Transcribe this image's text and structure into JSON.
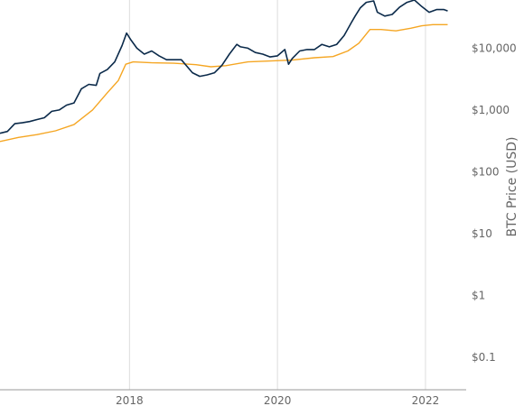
{
  "chart_data": {
    "type": "line",
    "title": "",
    "xlabel": "",
    "ylabel": "BTC Price (USD)",
    "y_scale": "log",
    "y_axis_side": "right",
    "ylim": [
      0.03,
      60000
    ],
    "xlim": [
      2016.25,
      2022.55
    ],
    "x_ticks": [
      {
        "value": 2018,
        "label": "2018"
      },
      {
        "value": 2020,
        "label": "2020"
      },
      {
        "value": 2022,
        "label": "2022"
      }
    ],
    "y_ticks": [
      {
        "value": 0.1,
        "label": "$0.1"
      },
      {
        "value": 1,
        "label": "$1"
      },
      {
        "value": 10,
        "label": "$10"
      },
      {
        "value": 100,
        "label": "$100"
      },
      {
        "value": 1000,
        "label": "$1,000"
      },
      {
        "value": 10000,
        "label": "$10,000"
      }
    ],
    "grid": {
      "vertical": true,
      "horizontal": false
    },
    "colors": {
      "price": "#0b2a4a",
      "average": "#f5a623",
      "grid": "#dddddd",
      "text": "#666666"
    },
    "series": [
      {
        "key": "price",
        "x": [
          2016.25,
          2016.35,
          2016.45,
          2016.55,
          2016.65,
          2016.75,
          2016.85,
          2016.95,
          2017.05,
          2017.15,
          2017.25,
          2017.35,
          2017.45,
          2017.55,
          2017.6,
          2017.7,
          2017.8,
          2017.9,
          2017.96,
          2018.02,
          2018.1,
          2018.2,
          2018.3,
          2018.4,
          2018.5,
          2018.6,
          2018.7,
          2018.85,
          2018.95,
          2019.05,
          2019.15,
          2019.25,
          2019.35,
          2019.45,
          2019.5,
          2019.6,
          2019.7,
          2019.8,
          2019.9,
          2020.0,
          2020.1,
          2020.15,
          2020.2,
          2020.3,
          2020.4,
          2020.5,
          2020.6,
          2020.7,
          2020.8,
          2020.9,
          2021.0,
          2021.05,
          2021.12,
          2021.2,
          2021.3,
          2021.35,
          2021.45,
          2021.55,
          2021.65,
          2021.75,
          2021.85,
          2021.95,
          2022.05,
          2022.15,
          2022.25,
          2022.3
        ],
        "y": [
          420,
          450,
          600,
          620,
          650,
          700,
          750,
          950,
          1000,
          1200,
          1300,
          2200,
          2600,
          2500,
          3900,
          4500,
          6000,
          11000,
          17500,
          13500,
          10000,
          8000,
          9000,
          7500,
          6500,
          6500,
          6500,
          4000,
          3500,
          3700,
          4000,
          5300,
          8000,
          11500,
          10500,
          10000,
          8500,
          8000,
          7200,
          7500,
          9500,
          5500,
          6800,
          9000,
          9500,
          9500,
          11500,
          10500,
          11500,
          16000,
          26000,
          33000,
          45000,
          55000,
          58000,
          38000,
          33000,
          35000,
          46000,
          55000,
          60000,
          47000,
          38000,
          42000,
          42000,
          40000
        ]
      },
      {
        "key": "average",
        "x": [
          2016.25,
          2016.5,
          2016.75,
          2017.0,
          2017.25,
          2017.5,
          2017.7,
          2017.85,
          2017.95,
          2018.05,
          2018.3,
          2018.6,
          2018.9,
          2019.1,
          2019.3,
          2019.6,
          2019.9,
          2020.2,
          2020.5,
          2020.75,
          2020.95,
          2021.1,
          2021.25,
          2021.4,
          2021.6,
          2021.8,
          2021.95,
          2022.1,
          2022.3
        ],
        "y": [
          310,
          360,
          400,
          460,
          580,
          1000,
          1900,
          3000,
          5500,
          6000,
          5800,
          5700,
          5400,
          5000,
          5200,
          6000,
          6200,
          6400,
          7000,
          7300,
          9000,
          12000,
          20000,
          20000,
          19000,
          21000,
          23000,
          24000,
          24000
        ]
      }
    ]
  }
}
